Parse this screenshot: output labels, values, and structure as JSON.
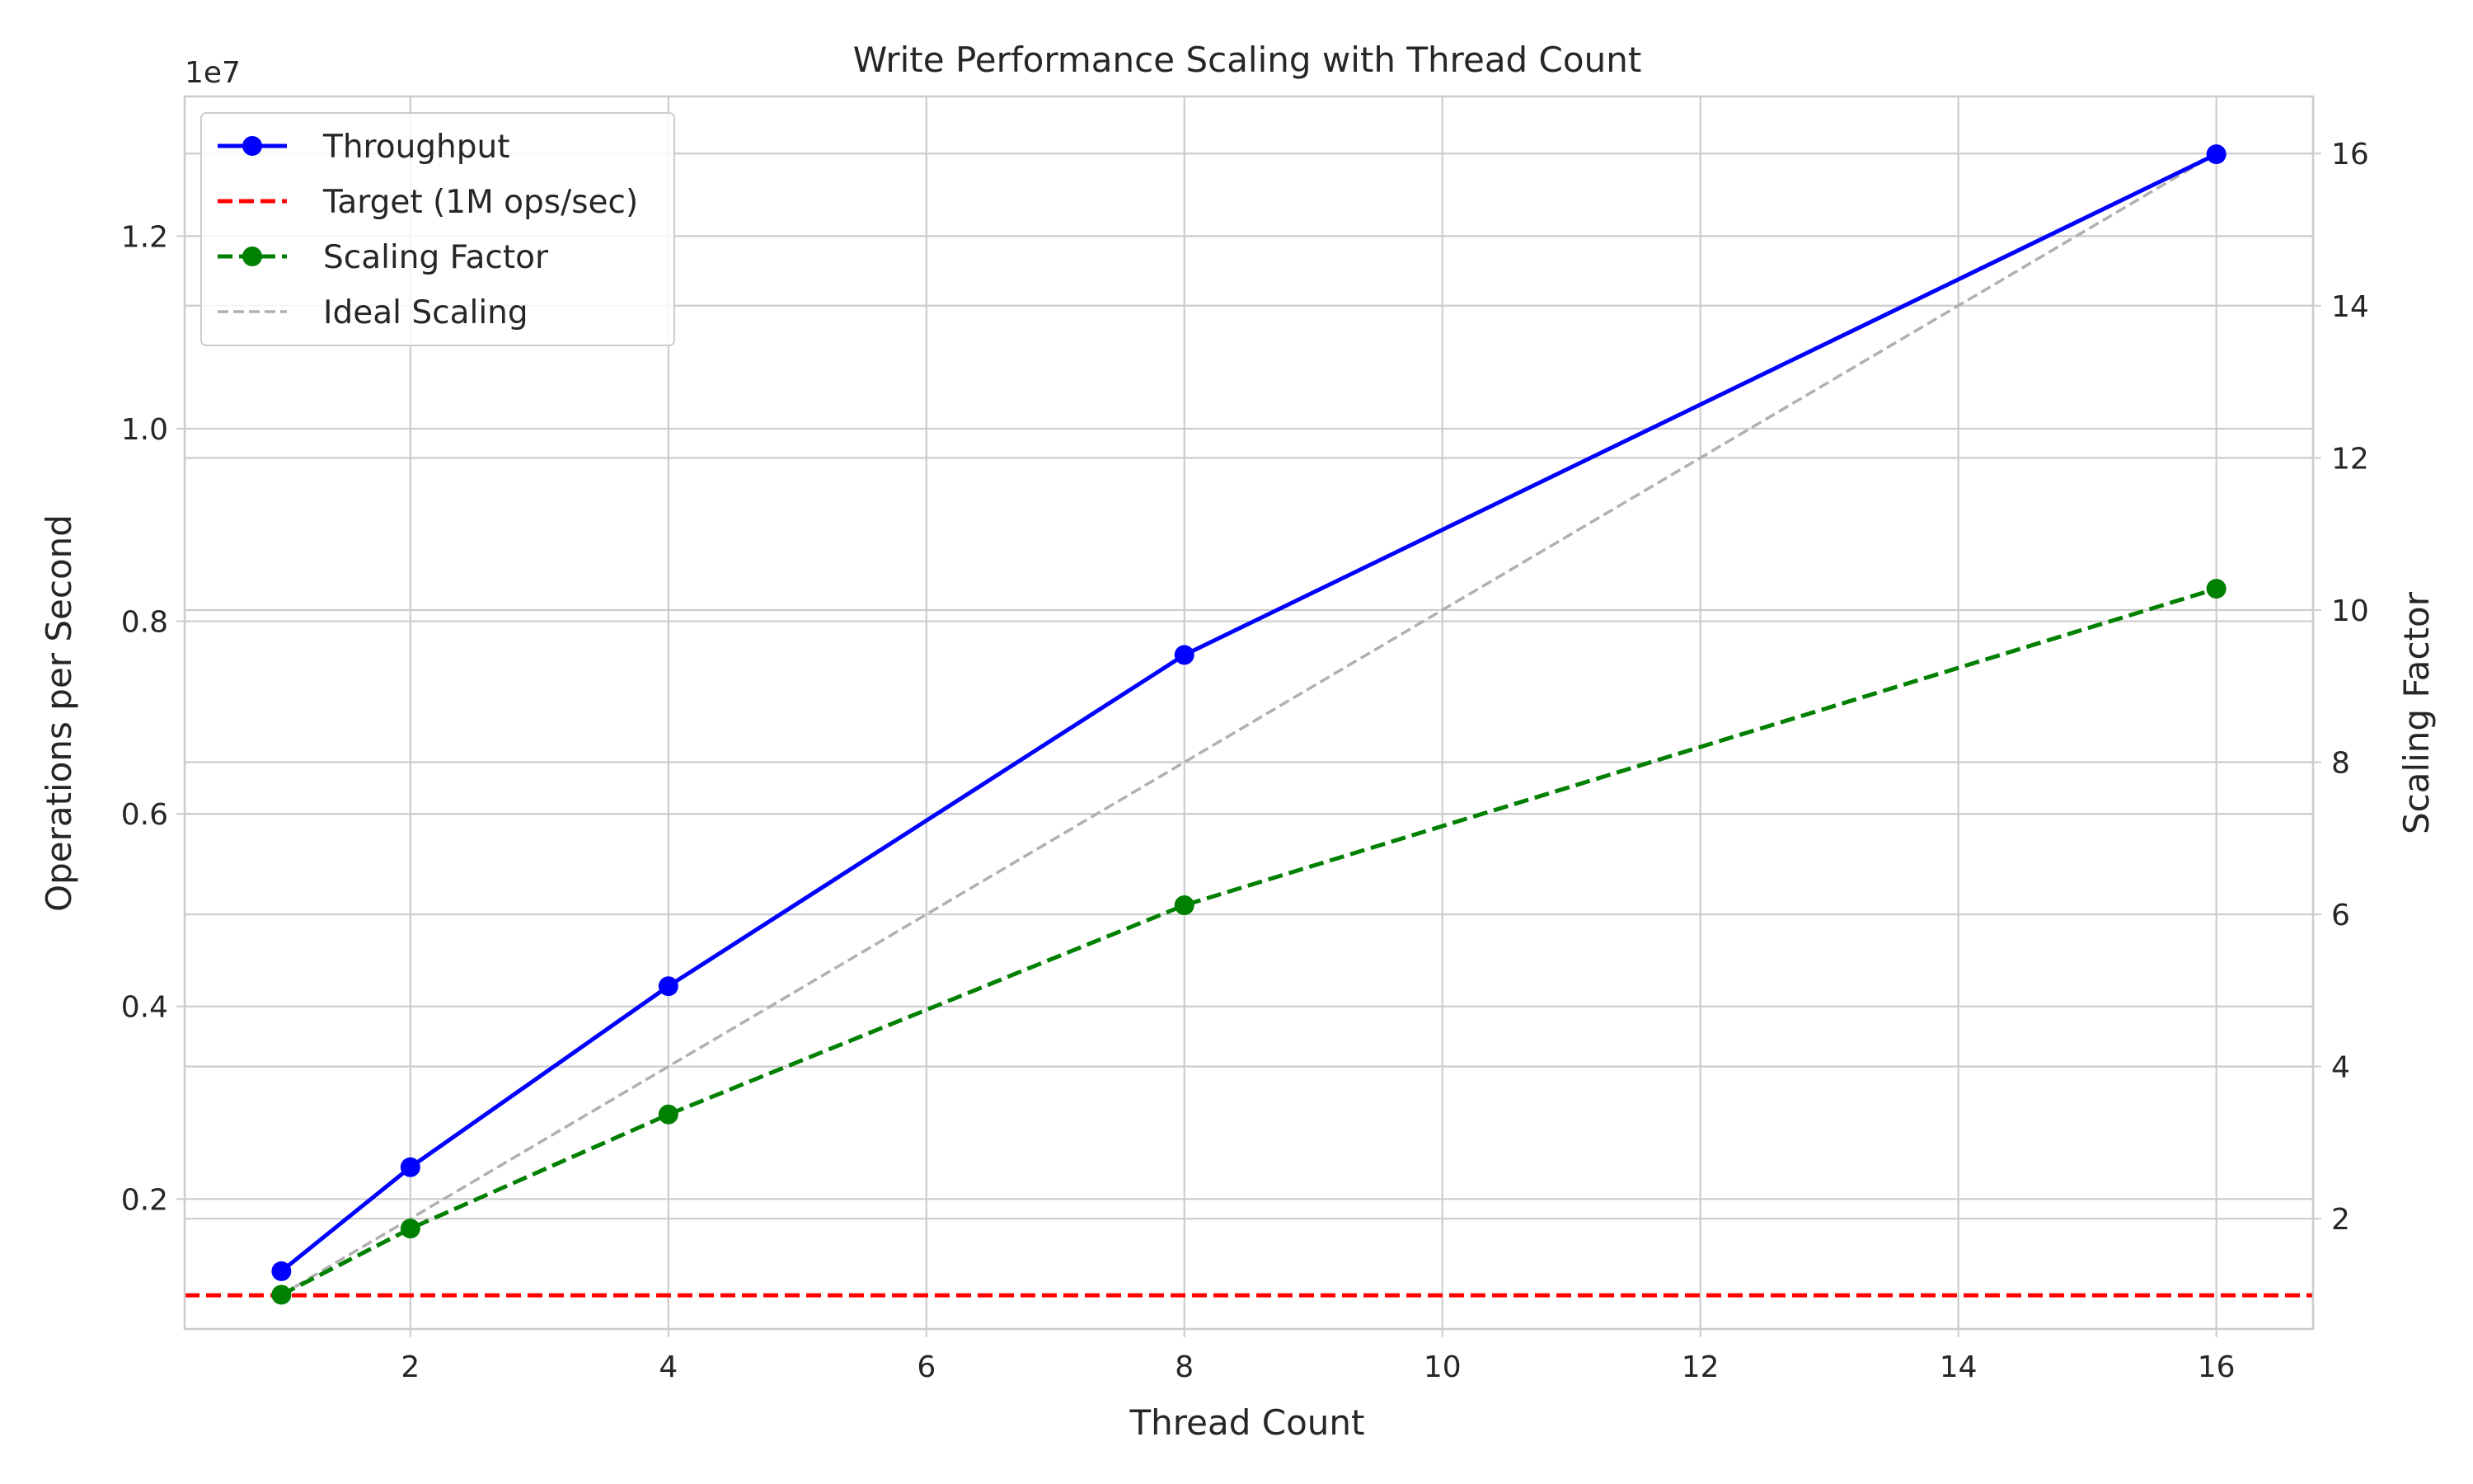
{
  "chart_data": {
    "type": "line",
    "title": "Write Performance Scaling with Thread Count",
    "xlabel": "Thread Count",
    "ylabel": "Operations per Second",
    "y2label": "Scaling Factor",
    "y_offset_label": "1e7",
    "xlim": [
      0.25,
      16.75
    ],
    "ylim": [
      0.065,
      1.345
    ],
    "y2lim": [
      0.55,
      16.75
    ],
    "x_ticks": [
      2,
      4,
      6,
      8,
      10,
      12,
      14,
      16
    ],
    "y_ticks": [
      0.2,
      0.4,
      0.6,
      0.8,
      1.0,
      1.2
    ],
    "y_tick_labels": [
      "0.2",
      "0.4",
      "0.6",
      "0.8",
      "1.0",
      "1.2"
    ],
    "y2_ticks": [
      2,
      4,
      6,
      8,
      10,
      12,
      14,
      16
    ],
    "grid": true,
    "legend_position": "top-left",
    "series": [
      {
        "name": "Throughput",
        "axis": "left",
        "color": "#0000ff",
        "line_style": "solid",
        "marker": "circle",
        "x": [
          1,
          2,
          4,
          8,
          16
        ],
        "y": [
          0.125,
          0.233,
          0.421,
          0.765,
          1.285
        ]
      },
      {
        "name": "Target (1M ops/sec)",
        "axis": "left",
        "color": "#ff0000",
        "line_style": "dashed",
        "marker": "none",
        "x": [
          0.25,
          16.75
        ],
        "y": [
          0.1,
          0.1
        ]
      },
      {
        "name": "Scaling Factor",
        "axis": "right",
        "color": "#008000",
        "line_style": "dashed",
        "marker": "circle",
        "x": [
          1,
          2,
          4,
          8,
          16
        ],
        "y": [
          1.0,
          1.87,
          3.37,
          6.12,
          10.28
        ]
      },
      {
        "name": "Ideal Scaling",
        "axis": "right",
        "color": "#b0b0b0",
        "line_style": "dashed",
        "marker": "none",
        "x": [
          1,
          2,
          4,
          8,
          16
        ],
        "y": [
          1,
          2,
          4,
          8,
          16
        ]
      }
    ]
  }
}
